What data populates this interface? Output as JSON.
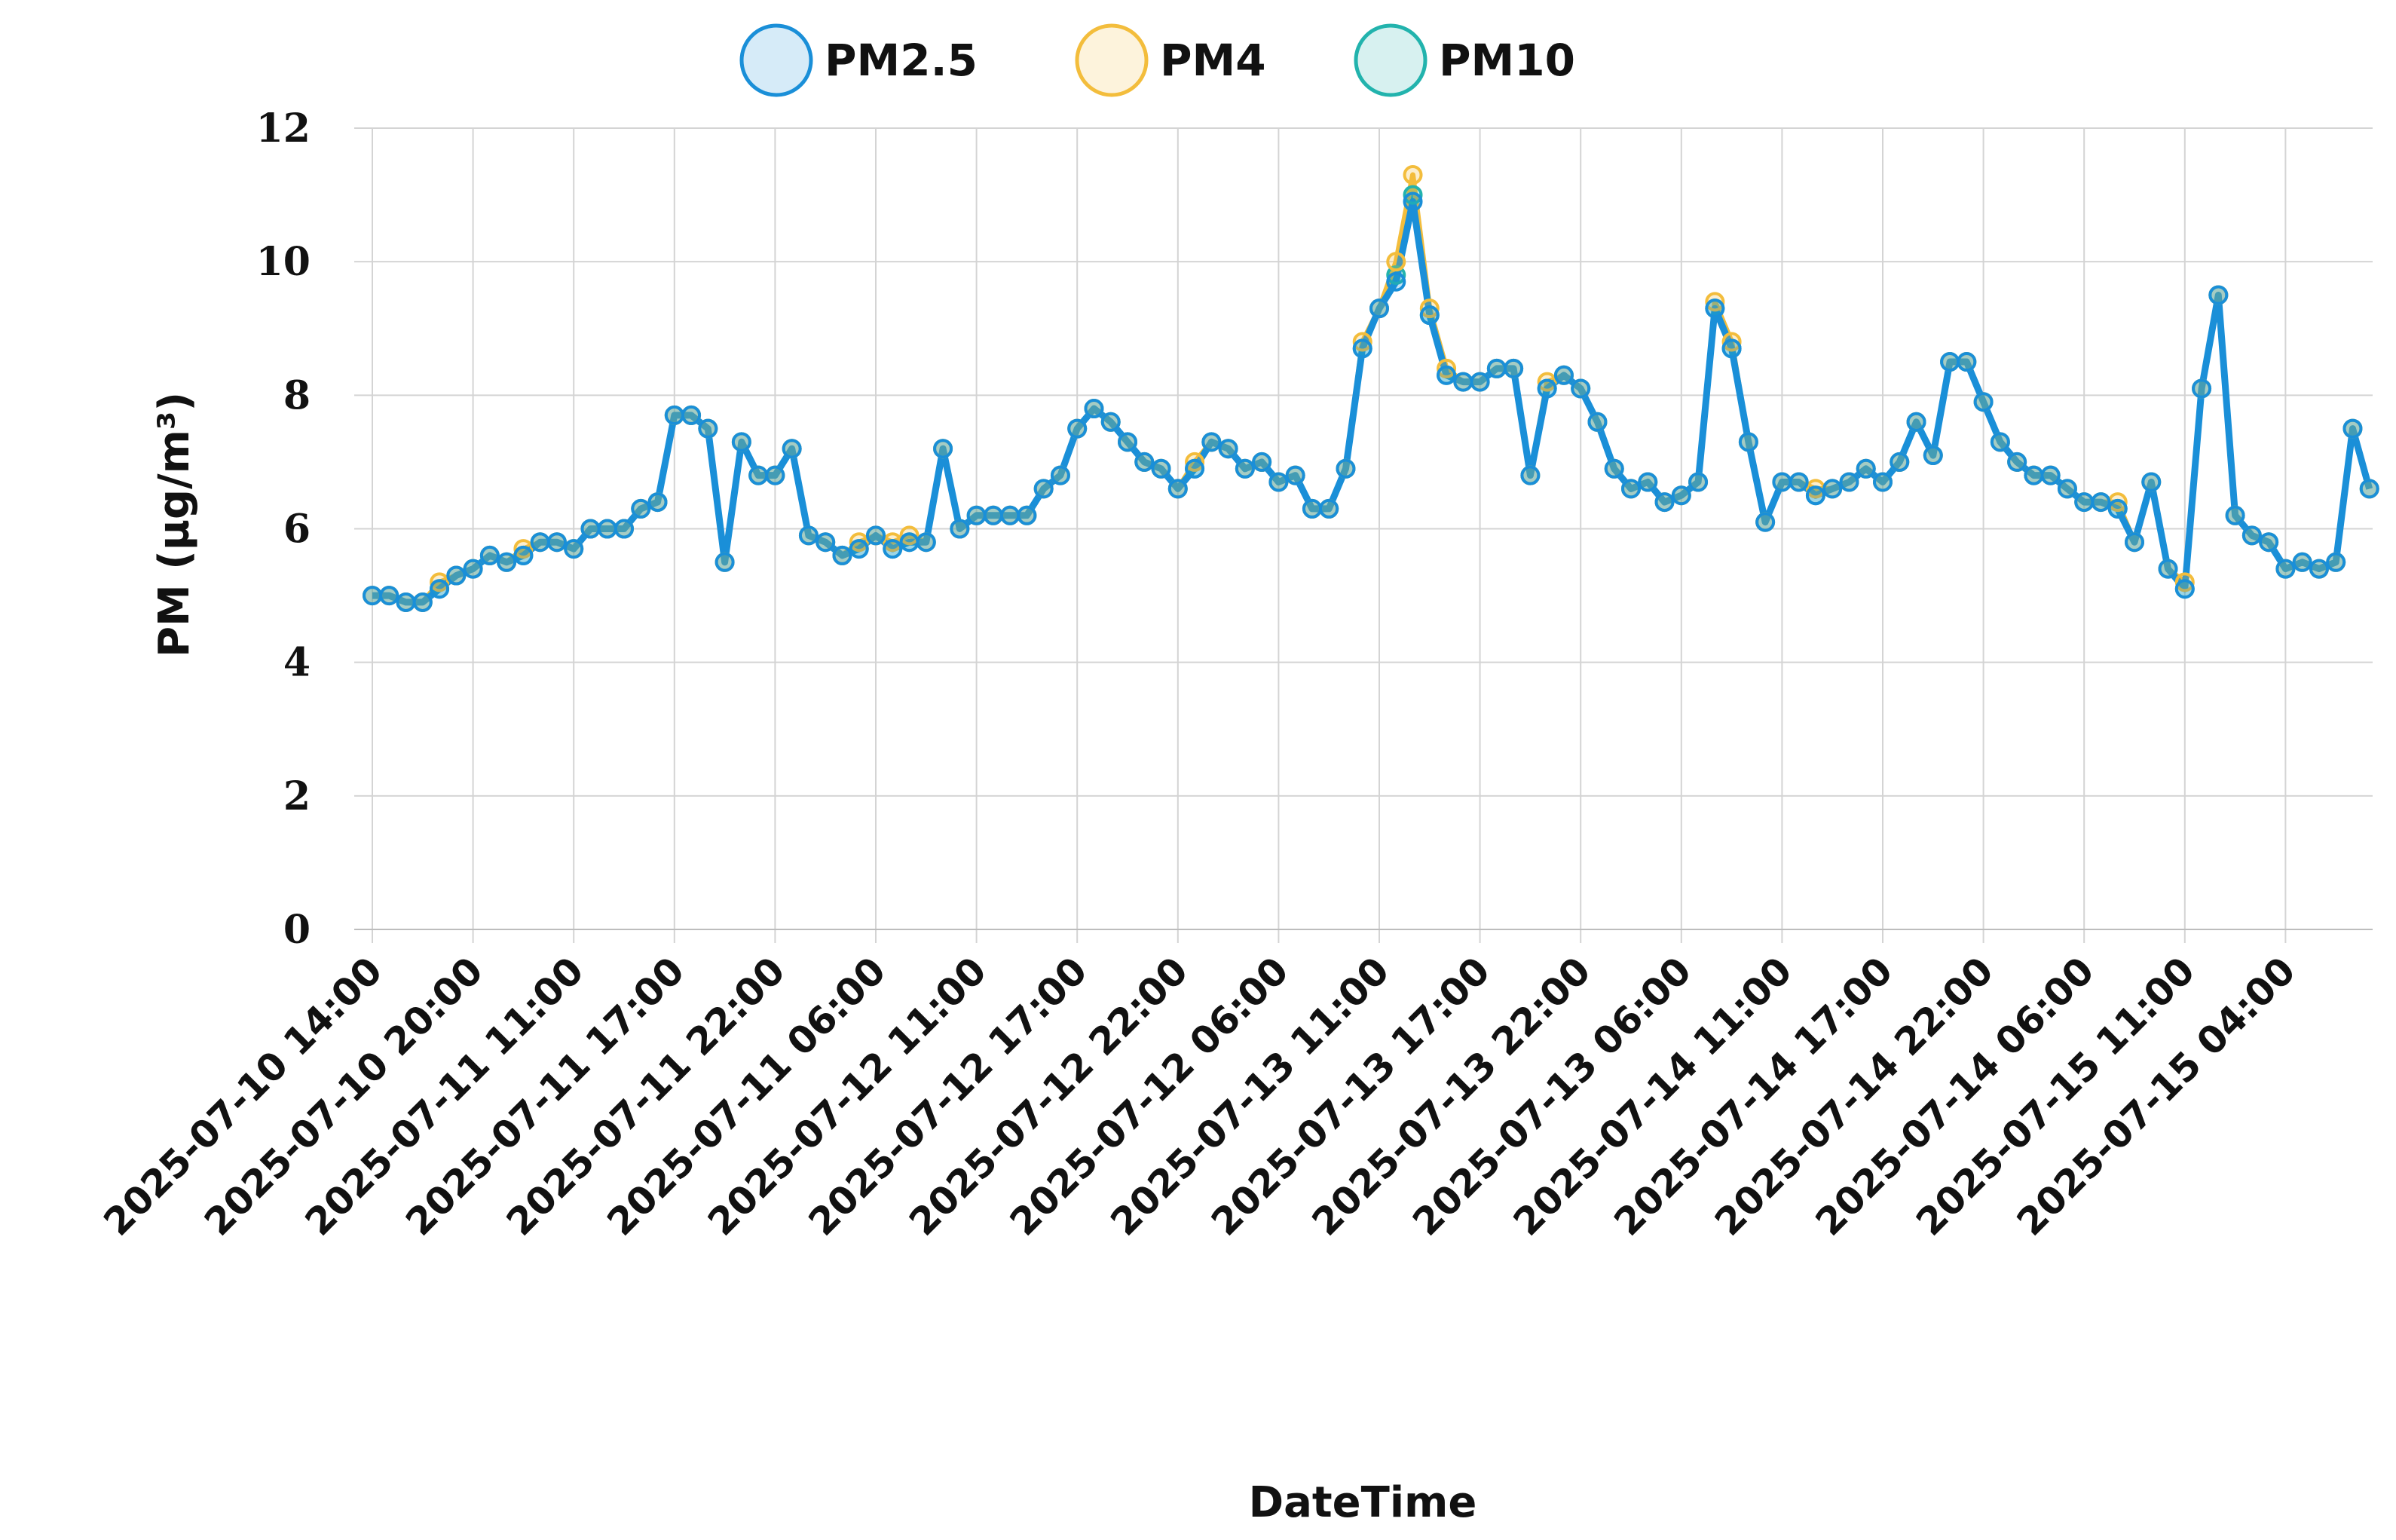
{
  "chart_data": {
    "type": "line",
    "xlabel": "DateTime",
    "ylabel": "PM (µg/m³)",
    "ylim": [
      0,
      12
    ],
    "yticks": [
      0,
      2,
      4,
      6,
      8,
      10,
      12
    ],
    "grid": true,
    "legend_position": "top-center",
    "tick_labels": [
      "2025-07-10 14:00",
      "2025-07-10 20:00",
      "2025-07-11 11:00",
      "2025-07-11 17:00",
      "2025-07-11 22:00",
      "2025-07-11 06:00",
      "2025-07-12 11:00",
      "2025-07-12 17:00",
      "2025-07-12 22:00",
      "2025-07-12 06:00",
      "2025-07-13 11:00",
      "2025-07-13 17:00",
      "2025-07-13 22:00",
      "2025-07-13 06:00",
      "2025-07-14 11:00",
      "2025-07-14 17:00",
      "2025-07-14 22:00",
      "2025-07-14 06:00",
      "2025-07-15 11:00",
      "2025-07-15 04:00"
    ],
    "points_per_tick": 6,
    "series": [
      {
        "name": "PM2.5",
        "color": "#1a8fd8",
        "values": [
          5.0,
          5.0,
          4.9,
          4.9,
          5.1,
          5.3,
          5.4,
          5.6,
          5.5,
          5.6,
          5.8,
          5.8,
          5.7,
          6.0,
          6.0,
          6.0,
          6.3,
          6.4,
          7.7,
          7.7,
          7.5,
          5.5,
          7.3,
          6.8,
          6.8,
          7.2,
          5.9,
          5.8,
          5.6,
          5.7,
          5.9,
          5.7,
          5.8,
          5.8,
          7.2,
          6.0,
          6.2,
          6.2,
          6.2,
          6.2,
          6.6,
          6.8,
          7.5,
          7.8,
          7.6,
          7.3,
          7.0,
          6.9,
          6.6,
          6.9,
          7.3,
          7.2,
          6.9,
          7.0,
          6.7,
          6.8,
          6.3,
          6.3,
          6.9,
          8.7,
          9.3,
          9.7,
          10.9,
          9.2,
          8.3,
          8.2,
          8.2,
          8.4,
          8.4,
          6.8,
          8.1,
          8.3,
          8.1,
          7.6,
          6.9,
          6.6,
          6.7,
          6.4,
          6.5,
          6.7,
          9.3,
          8.7,
          7.3,
          6.1,
          6.7,
          6.7,
          6.5,
          6.6,
          6.7,
          6.9,
          6.7,
          7.0,
          7.6,
          7.1,
          8.5,
          8.5,
          7.9,
          7.3,
          7.0,
          6.8,
          6.8,
          6.6,
          6.4,
          6.4,
          6.3,
          5.8,
          6.7,
          5.4,
          5.1,
          8.1,
          9.5,
          6.2,
          5.9,
          5.8,
          5.4,
          5.5,
          5.4,
          5.5,
          7.5,
          6.6
        ]
      },
      {
        "name": "PM4",
        "color": "#f3bd3c",
        "values": [
          5.0,
          5.0,
          4.9,
          4.9,
          5.2,
          5.3,
          5.4,
          5.6,
          5.5,
          5.7,
          5.8,
          5.8,
          5.7,
          6.0,
          6.0,
          6.0,
          6.3,
          6.4,
          7.7,
          7.7,
          7.5,
          5.5,
          7.3,
          6.8,
          6.8,
          7.2,
          5.9,
          5.8,
          5.6,
          5.8,
          5.9,
          5.8,
          5.9,
          5.8,
          7.2,
          6.0,
          6.2,
          6.2,
          6.2,
          6.2,
          6.6,
          6.8,
          7.5,
          7.8,
          7.6,
          7.3,
          7.0,
          6.9,
          6.6,
          7.0,
          7.3,
          7.2,
          6.9,
          7.0,
          6.7,
          6.8,
          6.3,
          6.3,
          6.9,
          8.8,
          9.3,
          10.0,
          11.3,
          9.3,
          8.4,
          8.2,
          8.2,
          8.4,
          8.4,
          6.8,
          8.2,
          8.3,
          8.1,
          7.6,
          6.9,
          6.6,
          6.7,
          6.4,
          6.5,
          6.7,
          9.4,
          8.8,
          7.3,
          6.1,
          6.7,
          6.7,
          6.6,
          6.6,
          6.7,
          6.9,
          6.7,
          7.0,
          7.6,
          7.1,
          8.5,
          8.5,
          7.9,
          7.3,
          7.0,
          6.8,
          6.8,
          6.6,
          6.4,
          6.4,
          6.4,
          5.8,
          6.7,
          5.4,
          5.2,
          8.1,
          9.5,
          6.2,
          5.9,
          5.8,
          5.4,
          5.5,
          5.4,
          5.5,
          7.5,
          6.6
        ]
      },
      {
        "name": "PM10",
        "color": "#22b3ad",
        "values": [
          5.0,
          5.0,
          4.9,
          4.9,
          5.1,
          5.3,
          5.4,
          5.6,
          5.5,
          5.6,
          5.8,
          5.8,
          5.7,
          6.0,
          6.0,
          6.0,
          6.3,
          6.4,
          7.7,
          7.7,
          7.5,
          5.5,
          7.3,
          6.8,
          6.8,
          7.2,
          5.9,
          5.8,
          5.6,
          5.7,
          5.9,
          5.7,
          5.8,
          5.8,
          7.2,
          6.0,
          6.2,
          6.2,
          6.2,
          6.2,
          6.6,
          6.8,
          7.5,
          7.8,
          7.6,
          7.3,
          7.0,
          6.9,
          6.6,
          6.9,
          7.3,
          7.2,
          6.9,
          7.0,
          6.7,
          6.8,
          6.3,
          6.3,
          6.9,
          8.7,
          9.3,
          9.8,
          11.0,
          9.2,
          8.3,
          8.2,
          8.2,
          8.4,
          8.4,
          6.8,
          8.1,
          8.3,
          8.1,
          7.6,
          6.9,
          6.6,
          6.7,
          6.4,
          6.5,
          6.7,
          9.3,
          8.7,
          7.3,
          6.1,
          6.7,
          6.7,
          6.5,
          6.6,
          6.7,
          6.9,
          6.7,
          7.0,
          7.6,
          7.1,
          8.5,
          8.5,
          7.9,
          7.3,
          7.0,
          6.8,
          6.8,
          6.6,
          6.4,
          6.4,
          6.3,
          5.8,
          6.7,
          5.4,
          5.1,
          8.1,
          9.5,
          6.2,
          5.9,
          5.8,
          5.4,
          5.5,
          5.4,
          5.5,
          7.5,
          6.6
        ]
      }
    ]
  }
}
